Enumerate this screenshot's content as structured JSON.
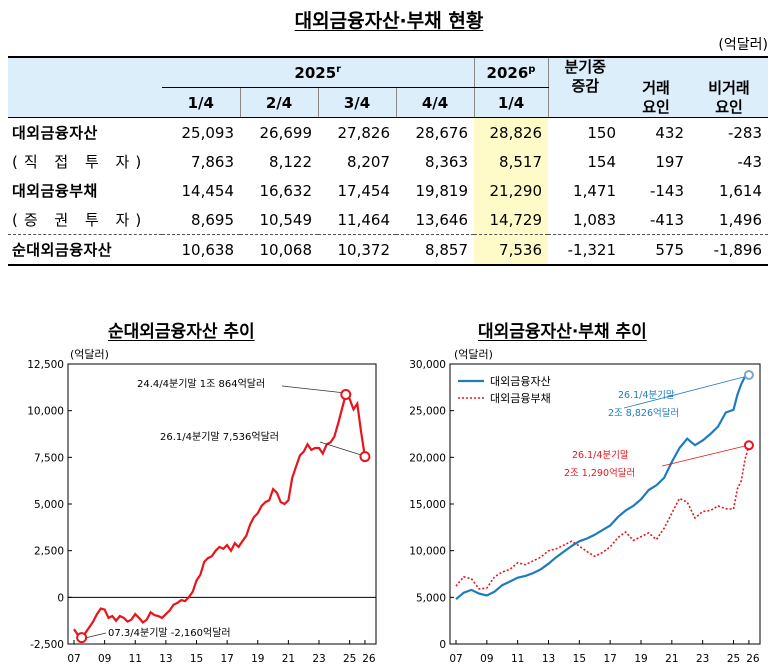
{
  "title": "대외금융자산·부채 현황",
  "unit": "(억달러)",
  "table": {
    "year_2025": "2025",
    "year_2025_sup": "r",
    "year_2026": "2026",
    "year_2026_sup": "p",
    "quarters": [
      "1/4",
      "2/4",
      "3/4",
      "4/4",
      "1/4"
    ],
    "change_header_1": "분기중",
    "change_header_2": "증감",
    "trade_header_1": "거래",
    "trade_header_2": "요인",
    "nontrade_header_1": "비거래",
    "nontrade_header_2": "요인",
    "rows": [
      {
        "label": "대외금융자산",
        "values": [
          "25,093",
          "26,699",
          "27,826",
          "28,676",
          "28,826",
          "150",
          "432",
          "-283"
        ]
      },
      {
        "label": "(직 접 투 자)",
        "values": [
          "7,863",
          "8,122",
          "8,207",
          "8,363",
          "8,517",
          "154",
          "197",
          "-43"
        ]
      },
      {
        "label": "대외금융부채",
        "values": [
          "14,454",
          "16,632",
          "17,454",
          "19,819",
          "21,290",
          "1,471",
          "-143",
          "1,614"
        ]
      },
      {
        "label": "(증 권 투 자)",
        "values": [
          "8,695",
          "10,549",
          "11,464",
          "13,646",
          "14,729",
          "1,083",
          "-413",
          "1,496"
        ]
      },
      {
        "label": "순대외금융자산",
        "values": [
          "10,638",
          "10,068",
          "10,372",
          "8,857",
          "7,536",
          "-1,321",
          "575",
          "-1,896"
        ]
      }
    ]
  },
  "chart_left": {
    "title": "순대외금융자산 추이",
    "unit": "(억달러)",
    "annotations": [
      "24.4/4분기말 1조 864억달러",
      "26.1/4분기말 7,536억달러",
      "07.3/4분기말 -2,160억달러"
    ],
    "color": "#e8141c"
  },
  "chart_right": {
    "title": "대외금융자산·부채 추이",
    "unit": "(억달러)",
    "legend": [
      "대외금융자산",
      "대외금융부채"
    ],
    "annotations": [
      "26.1/4분기말",
      "2조 8,826억달러",
      "26.1/4분기말",
      "2조 1,290억달러"
    ],
    "colors": [
      "#1f7bbf",
      "#e8141c"
    ]
  },
  "chart_data": [
    {
      "type": "line",
      "title": "순대외금융자산 추이",
      "ylabel": "(억달러)",
      "ylim": [
        -2500,
        12500
      ],
      "yticks": [
        "12,500",
        "10,000",
        "7,500",
        "5,000",
        "2,500",
        "0",
        "-2,500"
      ],
      "xticks": [
        "07",
        "09",
        "11",
        "13",
        "15",
        "17",
        "19",
        "21",
        "23",
        "25",
        "26"
      ],
      "series": [
        {
          "values": [
            [
              2007.0,
              -1700
            ],
            [
              2007.25,
              -2000
            ],
            [
              2007.5,
              -2160
            ],
            [
              2007.75,
              -1900
            ],
            [
              2008.0,
              -1600
            ],
            [
              2008.25,
              -1300
            ],
            [
              2008.5,
              -900
            ],
            [
              2008.75,
              -600
            ],
            [
              2009.0,
              -650
            ],
            [
              2009.25,
              -1100
            ],
            [
              2009.5,
              -1000
            ],
            [
              2009.75,
              -1250
            ],
            [
              2010.0,
              -1000
            ],
            [
              2010.25,
              -1100
            ],
            [
              2010.5,
              -1300
            ],
            [
              2010.75,
              -1200
            ],
            [
              2011.0,
              -900
            ],
            [
              2011.25,
              -1100
            ],
            [
              2011.5,
              -1350
            ],
            [
              2011.75,
              -1200
            ],
            [
              2012.0,
              -800
            ],
            [
              2012.25,
              -950
            ],
            [
              2012.5,
              -1000
            ],
            [
              2012.75,
              -1100
            ],
            [
              2013.0,
              -900
            ],
            [
              2013.25,
              -700
            ],
            [
              2013.5,
              -400
            ],
            [
              2013.75,
              -300
            ],
            [
              2014.0,
              -150
            ],
            [
              2014.25,
              -200
            ],
            [
              2014.5,
              0
            ],
            [
              2014.75,
              300
            ],
            [
              2015.0,
              900
            ],
            [
              2015.25,
              1200
            ],
            [
              2015.5,
              1900
            ],
            [
              2015.75,
              2100
            ],
            [
              2016.0,
              2200
            ],
            [
              2016.25,
              2500
            ],
            [
              2016.5,
              2700
            ],
            [
              2016.75,
              2600
            ],
            [
              2017.0,
              2800
            ],
            [
              2017.25,
              2500
            ],
            [
              2017.5,
              2900
            ],
            [
              2017.75,
              2700
            ],
            [
              2018.0,
              3000
            ],
            [
              2018.25,
              3300
            ],
            [
              2018.5,
              3900
            ],
            [
              2018.75,
              4300
            ],
            [
              2019.0,
              4500
            ],
            [
              2019.25,
              4900
            ],
            [
              2019.5,
              5100
            ],
            [
              2019.75,
              5200
            ],
            [
              2020.0,
              5800
            ],
            [
              2020.25,
              5600
            ],
            [
              2020.5,
              5100
            ],
            [
              2020.75,
              5000
            ],
            [
              2021.0,
              5200
            ],
            [
              2021.25,
              6400
            ],
            [
              2021.5,
              7000
            ],
            [
              2021.75,
              7600
            ],
            [
              2022.0,
              7800
            ],
            [
              2022.25,
              8200
            ],
            [
              2022.5,
              7900
            ],
            [
              2022.75,
              8000
            ],
            [
              2023.0,
              8000
            ],
            [
              2023.25,
              7700
            ],
            [
              2023.5,
              8200
            ],
            [
              2023.75,
              8300
            ],
            [
              2024.0,
              8600
            ],
            [
              2024.25,
              9300
            ],
            [
              2024.5,
              10100
            ],
            [
              2024.75,
              10864
            ],
            [
              2025.0,
              10638
            ],
            [
              2025.25,
              10068
            ],
            [
              2025.5,
              10372
            ],
            [
              2025.75,
              8857
            ],
            [
              2026.0,
              7536
            ]
          ]
        }
      ]
    },
    {
      "type": "line",
      "title": "대외금융자산·부채 추이",
      "ylabel": "(억달러)",
      "ylim": [
        0,
        30000
      ],
      "yticks": [
        "30,000",
        "25,000",
        "20,000",
        "15,000",
        "10,000",
        "5,000",
        "0"
      ],
      "xticks": [
        "07",
        "09",
        "11",
        "13",
        "15",
        "17",
        "19",
        "21",
        "23",
        "25",
        "26"
      ],
      "series": [
        {
          "name": "대외금융자산",
          "values": [
            [
              2007.0,
              4800
            ],
            [
              2007.5,
              5500
            ],
            [
              2008.0,
              5800
            ],
            [
              2008.5,
              5400
            ],
            [
              2009.0,
              5200
            ],
            [
              2009.5,
              5600
            ],
            [
              2010.0,
              6300
            ],
            [
              2010.5,
              6700
            ],
            [
              2011.0,
              7100
            ],
            [
              2011.5,
              7300
            ],
            [
              2012.0,
              7600
            ],
            [
              2012.5,
              8000
            ],
            [
              2013.0,
              8600
            ],
            [
              2013.5,
              9300
            ],
            [
              2014.0,
              9900
            ],
            [
              2014.5,
              10500
            ],
            [
              2015.0,
              11000
            ],
            [
              2015.5,
              11300
            ],
            [
              2016.0,
              11700
            ],
            [
              2016.5,
              12200
            ],
            [
              2017.0,
              12700
            ],
            [
              2017.5,
              13600
            ],
            [
              2018.0,
              14300
            ],
            [
              2018.5,
              14800
            ],
            [
              2019.0,
              15500
            ],
            [
              2019.5,
              16500
            ],
            [
              2020.0,
              17000
            ],
            [
              2020.5,
              17800
            ],
            [
              2021.0,
              19500
            ],
            [
              2021.5,
              21000
            ],
            [
              2022.0,
              22000
            ],
            [
              2022.5,
              21300
            ],
            [
              2023.0,
              21800
            ],
            [
              2023.5,
              22500
            ],
            [
              2024.0,
              23300
            ],
            [
              2024.5,
              24800
            ],
            [
              2025.0,
              25093
            ],
            [
              2025.25,
              26699
            ],
            [
              2025.5,
              27826
            ],
            [
              2025.75,
              28676
            ],
            [
              2026.0,
              28826
            ]
          ]
        },
        {
          "name": "대외금융부채",
          "values": [
            [
              2007.0,
              6200
            ],
            [
              2007.5,
              7200
            ],
            [
              2008.0,
              7000
            ],
            [
              2008.5,
              5900
            ],
            [
              2009.0,
              6000
            ],
            [
              2009.5,
              7200
            ],
            [
              2010.0,
              7700
            ],
            [
              2010.5,
              8000
            ],
            [
              2011.0,
              8700
            ],
            [
              2011.5,
              8500
            ],
            [
              2012.0,
              8900
            ],
            [
              2012.5,
              9300
            ],
            [
              2013.0,
              10000
            ],
            [
              2013.5,
              10200
            ],
            [
              2014.0,
              10600
            ],
            [
              2014.5,
              11000
            ],
            [
              2015.0,
              10500
            ],
            [
              2015.5,
              9900
            ],
            [
              2016.0,
              9400
            ],
            [
              2016.5,
              9800
            ],
            [
              2017.0,
              10400
            ],
            [
              2017.5,
              11400
            ],
            [
              2018.0,
              12000
            ],
            [
              2018.5,
              11100
            ],
            [
              2019.0,
              11500
            ],
            [
              2019.5,
              11900
            ],
            [
              2020.0,
              11200
            ],
            [
              2020.5,
              12400
            ],
            [
              2021.0,
              14000
            ],
            [
              2021.5,
              15600
            ],
            [
              2022.0,
              15200
            ],
            [
              2022.5,
              13500
            ],
            [
              2023.0,
              14200
            ],
            [
              2023.5,
              14300
            ],
            [
              2024.0,
              14800
            ],
            [
              2024.5,
              14500
            ],
            [
              2025.0,
              14454
            ],
            [
              2025.25,
              16632
            ],
            [
              2025.5,
              17454
            ],
            [
              2025.75,
              19819
            ],
            [
              2026.0,
              21290
            ]
          ]
        }
      ]
    }
  ]
}
